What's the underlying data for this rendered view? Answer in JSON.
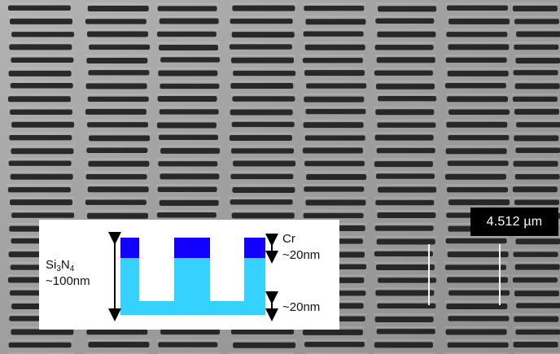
{
  "scene": {
    "type": "scanning electron micrograph of a periodic rectangular slot array"
  },
  "scale_bar": {
    "label": "4.512 µm"
  },
  "inset": {
    "si_label_main": "Si",
    "si_label_sub_1": "3",
    "si_label_mid": "N",
    "si_label_sub_2": "4",
    "si_thickness": "~100nm",
    "cr_label": "Cr",
    "cr_thickness": "~20nm",
    "bottom_thickness": "~20nm",
    "colors": {
      "si3n4": "#35d1ff",
      "cr": "#1200ff",
      "arrow": "#000000",
      "background": "#ffffff"
    }
  }
}
